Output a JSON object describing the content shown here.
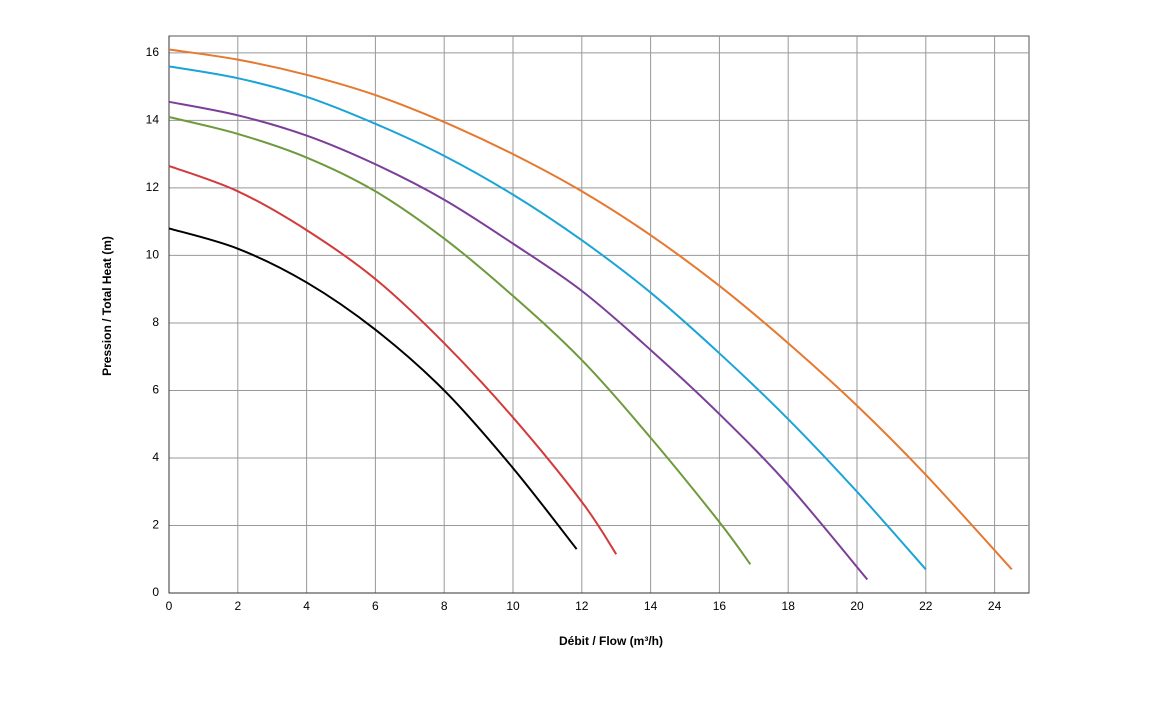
{
  "chart_data": {
    "type": "line",
    "x_label": "Débit / Flow (m³/h)",
    "y_label": "Pression / Total Heat (m)",
    "xlim": [
      0,
      25
    ],
    "xticks": [
      0,
      2,
      4,
      6,
      8,
      10,
      12,
      14,
      16,
      18,
      20,
      22,
      24
    ],
    "ylim": [
      0,
      16.5
    ],
    "yticks": [
      0,
      2,
      4,
      6,
      8,
      10,
      12,
      14,
      16
    ],
    "grid": true,
    "series": [
      {
        "color": "#000000",
        "x": [
          0,
          2,
          4,
          6,
          8,
          10,
          11.85
        ],
        "values": [
          10.8,
          10.2,
          9.2,
          7.8,
          6.0,
          3.7,
          1.3
        ]
      },
      {
        "color": "#d23b3b",
        "x": [
          0,
          2,
          4,
          6,
          8,
          10,
          12,
          13
        ],
        "values": [
          12.65,
          11.9,
          10.75,
          9.3,
          7.4,
          5.2,
          2.7,
          1.15
        ]
      },
      {
        "color": "#6e9a3c",
        "x": [
          0,
          2,
          4,
          6,
          8,
          10,
          12,
          14,
          16,
          16.9
        ],
        "values": [
          14.1,
          13.6,
          12.9,
          11.9,
          10.5,
          8.8,
          6.9,
          4.6,
          2.1,
          0.85
        ]
      },
      {
        "color": "#7b3f99",
        "x": [
          0,
          2,
          4,
          6,
          8,
          10,
          12,
          14,
          16,
          18,
          20.3
        ],
        "values": [
          14.55,
          14.15,
          13.55,
          12.7,
          11.65,
          10.35,
          8.95,
          7.2,
          5.3,
          3.2,
          0.4
        ]
      },
      {
        "color": "#1ba4d6",
        "x": [
          0,
          2,
          4,
          6,
          8,
          10,
          12,
          14,
          16,
          18,
          20,
          22
        ],
        "values": [
          15.6,
          15.25,
          14.7,
          13.9,
          12.95,
          11.8,
          10.45,
          8.9,
          7.1,
          5.15,
          3.0,
          0.7
        ]
      },
      {
        "color": "#e6782f",
        "x": [
          0,
          2,
          4,
          6,
          8,
          10,
          12,
          14,
          16,
          18,
          20,
          22,
          24.5
        ],
        "values": [
          16.1,
          15.8,
          15.35,
          14.75,
          13.95,
          13.0,
          11.9,
          10.6,
          9.1,
          7.4,
          5.55,
          3.5,
          0.7
        ]
      }
    ]
  }
}
